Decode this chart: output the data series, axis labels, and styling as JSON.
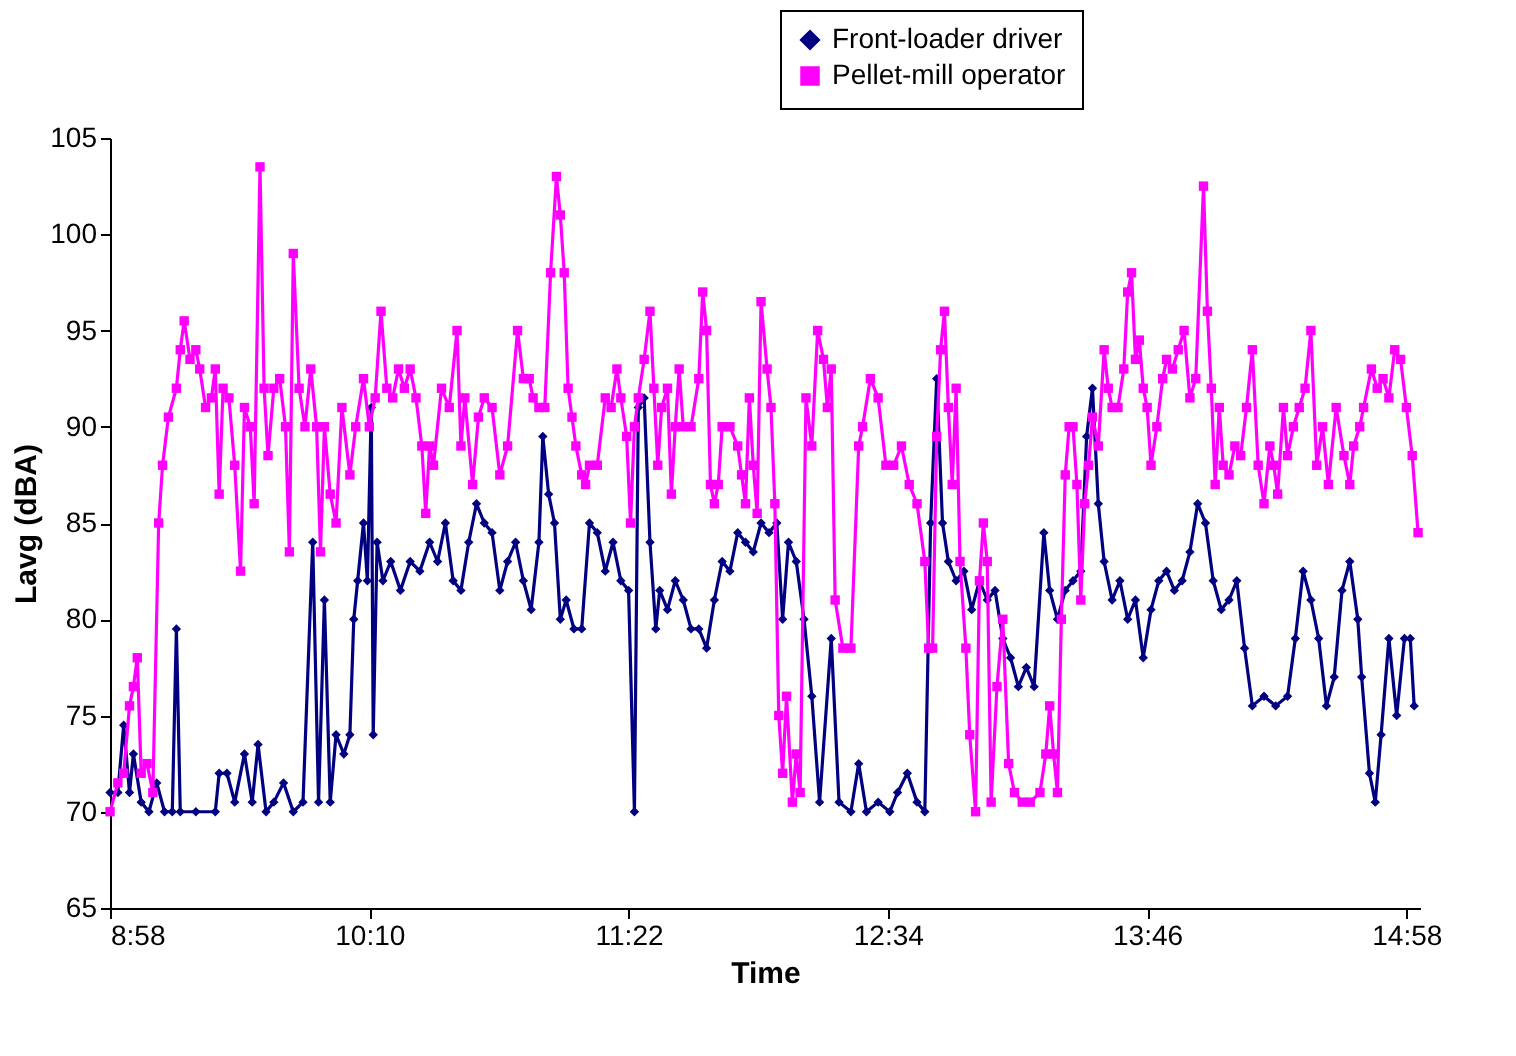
{
  "chart_data": {
    "type": "line",
    "xlabel": "Time",
    "ylabel": "Lavg (dBA)",
    "xlim": [
      8.9667,
      15.03
    ],
    "ylim": [
      65,
      105
    ],
    "xticks": [
      {
        "value": 8.9667,
        "label": "8:58"
      },
      {
        "value": 10.1667,
        "label": "10:10"
      },
      {
        "value": 11.3667,
        "label": "11:22"
      },
      {
        "value": 12.5667,
        "label": "12:34"
      },
      {
        "value": 13.7667,
        "label": "13:46"
      },
      {
        "value": 14.9667,
        "label": "14:58"
      }
    ],
    "yticks": [
      65,
      70,
      75,
      80,
      85,
      90,
      95,
      100,
      105
    ],
    "grid": false,
    "legend": "top right",
    "line_style": "solid",
    "series": [
      {
        "name": "Front-loader driver",
        "color": "#000080",
        "marker": "diamond",
        "x": [
          8.967,
          9.003,
          9.03,
          9.057,
          9.075,
          9.111,
          9.147,
          9.183,
          9.219,
          9.255,
          9.274,
          9.292,
          9.364,
          9.454,
          9.472,
          9.508,
          9.544,
          9.589,
          9.625,
          9.652,
          9.689,
          9.725,
          9.77,
          9.815,
          9.86,
          9.905,
          9.932,
          9.959,
          9.986,
          10.013,
          10.049,
          10.077,
          10.095,
          10.113,
          10.14,
          10.158,
          10.176,
          10.185,
          10.203,
          10.23,
          10.266,
          10.311,
          10.356,
          10.401,
          10.446,
          10.483,
          10.519,
          10.555,
          10.591,
          10.627,
          10.663,
          10.699,
          10.735,
          10.771,
          10.807,
          10.844,
          10.88,
          10.916,
          10.952,
          10.97,
          10.997,
          11.024,
          11.051,
          11.078,
          11.114,
          11.15,
          11.186,
          11.222,
          11.259,
          11.295,
          11.331,
          11.367,
          11.394,
          11.412,
          11.439,
          11.466,
          11.493,
          11.511,
          11.547,
          11.583,
          11.62,
          11.656,
          11.692,
          11.728,
          11.764,
          11.8,
          11.836,
          11.872,
          11.908,
          11.944,
          11.98,
          12.017,
          12.053,
          12.08,
          12.107,
          12.143,
          12.179,
          12.215,
          12.251,
          12.305,
          12.341,
          12.396,
          12.432,
          12.468,
          12.522,
          12.576,
          12.612,
          12.657,
          12.702,
          12.738,
          12.765,
          12.793,
          12.82,
          12.847,
          12.883,
          12.919,
          12.955,
          12.991,
          13.027,
          13.063,
          13.099,
          13.135,
          13.171,
          13.208,
          13.244,
          13.289,
          13.316,
          13.352,
          13.388,
          13.424,
          13.46,
          13.487,
          13.514,
          13.541,
          13.568,
          13.605,
          13.641,
          13.677,
          13.713,
          13.749,
          13.785,
          13.821,
          13.857,
          13.893,
          13.929,
          13.965,
          14.001,
          14.037,
          14.073,
          14.11,
          14.146,
          14.182,
          14.218,
          14.254,
          14.308,
          14.362,
          14.417,
          14.453,
          14.489,
          14.525,
          14.561,
          14.597,
          14.633,
          14.669,
          14.705,
          14.742,
          14.76,
          14.796,
          14.823,
          14.85,
          14.886,
          14.922,
          14.958,
          14.985,
          15.003
        ],
        "values": [
          71,
          71,
          74.5,
          71,
          73,
          70.5,
          70,
          71.5,
          70,
          70,
          79.5,
          70,
          70,
          70,
          72,
          72,
          70.5,
          73,
          70.5,
          73.5,
          70,
          70.5,
          71.5,
          70,
          70.5,
          84,
          70.5,
          81,
          70.5,
          74,
          73,
          74,
          80,
          82,
          85,
          82,
          91,
          74,
          84,
          82,
          83,
          81.5,
          83,
          82.5,
          84,
          83,
          85,
          82,
          81.5,
          84,
          86,
          85,
          84.5,
          81.5,
          83,
          84,
          82,
          80.5,
          84,
          89.5,
          86.5,
          85,
          80,
          81,
          79.5,
          79.5,
          85,
          84.5,
          82.5,
          84,
          82,
          81.5,
          70,
          91,
          91.5,
          84,
          79.5,
          81.5,
          80.5,
          82,
          81,
          79.5,
          79.5,
          78.5,
          81,
          83,
          82.5,
          84.5,
          84,
          83.5,
          85,
          84.5,
          85,
          80,
          84,
          83,
          80,
          76,
          70.5,
          79,
          70.5,
          70,
          72.5,
          70,
          70.5,
          70,
          71,
          72,
          70.5,
          70,
          85,
          92.5,
          85,
          83,
          82,
          82.5,
          80.5,
          82,
          81,
          81.5,
          79,
          78,
          76.5,
          77.5,
          76.5,
          84.5,
          81.5,
          80,
          81.5,
          82,
          82.5,
          89.5,
          92,
          86,
          83,
          81,
          82,
          80,
          81,
          78,
          80.5,
          82,
          82.5,
          81.5,
          82,
          83.5,
          86,
          85,
          82,
          80.5,
          81,
          82,
          78.5,
          75.5,
          76,
          75.5,
          76,
          79,
          82.5,
          81,
          79,
          75.5,
          77,
          81.5,
          83,
          80,
          77,
          72,
          70.5,
          74,
          79,
          75,
          79,
          79,
          75.5
        ]
      },
      {
        "name": "Pellet-mill operator",
        "color": "#ff00ff",
        "marker": "square",
        "x": [
          8.967,
          9.003,
          9.03,
          9.057,
          9.075,
          9.093,
          9.111,
          9.138,
          9.165,
          9.192,
          9.21,
          9.237,
          9.274,
          9.292,
          9.31,
          9.337,
          9.364,
          9.382,
          9.409,
          9.436,
          9.454,
          9.472,
          9.49,
          9.517,
          9.544,
          9.571,
          9.589,
          9.616,
          9.634,
          9.661,
          9.68,
          9.698,
          9.725,
          9.752,
          9.779,
          9.797,
          9.815,
          9.842,
          9.869,
          9.896,
          9.923,
          9.941,
          9.959,
          9.986,
          10.013,
          10.04,
          10.077,
          10.104,
          10.14,
          10.167,
          10.194,
          10.221,
          10.248,
          10.275,
          10.302,
          10.329,
          10.356,
          10.383,
          10.41,
          10.428,
          10.446,
          10.464,
          10.501,
          10.537,
          10.573,
          10.591,
          10.609,
          10.645,
          10.672,
          10.699,
          10.735,
          10.771,
          10.807,
          10.853,
          10.88,
          10.907,
          10.925,
          10.952,
          10.979,
          11.006,
          11.033,
          11.051,
          11.069,
          11.087,
          11.105,
          11.123,
          11.15,
          11.168,
          11.186,
          11.222,
          11.259,
          11.286,
          11.313,
          11.331,
          11.358,
          11.376,
          11.394,
          11.412,
          11.439,
          11.466,
          11.484,
          11.502,
          11.52,
          11.547,
          11.565,
          11.583,
          11.601,
          11.62,
          11.656,
          11.692,
          11.71,
          11.728,
          11.746,
          11.764,
          11.782,
          11.8,
          11.836,
          11.872,
          11.89,
          11.908,
          11.926,
          11.944,
          11.962,
          11.98,
          12.008,
          12.026,
          12.044,
          12.062,
          12.08,
          12.098,
          12.125,
          12.143,
          12.161,
          12.188,
          12.215,
          12.242,
          12.269,
          12.287,
          12.305,
          12.323,
          12.359,
          12.396,
          12.432,
          12.45,
          12.486,
          12.522,
          12.558,
          12.594,
          12.63,
          12.666,
          12.702,
          12.738,
          12.756,
          12.774,
          12.793,
          12.811,
          12.829,
          12.847,
          12.865,
          12.883,
          12.901,
          12.928,
          12.946,
          12.973,
          12.991,
          13.009,
          13.027,
          13.045,
          13.072,
          13.099,
          13.126,
          13.153,
          13.189,
          13.226,
          13.271,
          13.298,
          13.316,
          13.334,
          13.352,
          13.37,
          13.388,
          13.406,
          13.424,
          13.442,
          13.46,
          13.478,
          13.496,
          13.514,
          13.541,
          13.568,
          13.587,
          13.605,
          13.632,
          13.659,
          13.677,
          13.695,
          13.713,
          13.731,
          13.749,
          13.767,
          13.785,
          13.812,
          13.839,
          13.857,
          13.884,
          13.911,
          13.938,
          13.965,
          13.992,
          14.028,
          14.046,
          14.064,
          14.082,
          14.101,
          14.119,
          14.146,
          14.173,
          14.2,
          14.227,
          14.254,
          14.281,
          14.308,
          14.335,
          14.353,
          14.371,
          14.398,
          14.417,
          14.444,
          14.471,
          14.498,
          14.525,
          14.552,
          14.579,
          14.606,
          14.642,
          14.678,
          14.705,
          14.723,
          14.751,
          14.769,
          14.805,
          14.832,
          14.859,
          14.886,
          14.913,
          14.94,
          14.967,
          14.994,
          15.021
        ],
        "values": [
          70,
          71.5,
          72,
          75.5,
          76.5,
          78,
          72,
          72.5,
          71,
          85,
          88,
          90.5,
          92,
          94,
          95.5,
          93.5,
          94,
          93,
          91,
          91.5,
          93,
          86.5,
          92,
          91.5,
          88,
          82.5,
          91,
          90,
          86,
          103.5,
          92,
          88.5,
          92,
          92.5,
          90,
          83.5,
          99,
          92,
          90,
          93,
          90,
          83.5,
          90,
          86.5,
          85,
          91,
          87.5,
          90,
          92.5,
          90,
          91.5,
          96,
          92,
          91.5,
          93,
          92,
          93,
          91.5,
          89,
          85.5,
          89,
          88,
          92,
          91,
          95,
          89,
          91.5,
          87,
          90.5,
          91.5,
          91,
          87.5,
          89,
          95,
          92.5,
          92.5,
          91.5,
          91,
          91,
          98,
          103,
          101,
          98,
          92,
          90.5,
          89,
          87.5,
          87,
          88,
          88,
          91.5,
          91,
          93,
          91.5,
          89.5,
          85,
          90,
          91.5,
          93.5,
          96,
          92,
          88,
          91,
          92,
          86.5,
          90,
          93,
          90,
          90,
          92.5,
          97,
          95,
          87,
          86,
          87,
          90,
          90,
          89,
          87.5,
          86,
          91.5,
          88,
          85.5,
          96.5,
          93,
          91,
          86,
          75,
          72,
          76,
          70.5,
          73,
          71,
          91.5,
          89,
          95,
          93.5,
          91,
          93,
          81,
          78.5,
          78.5,
          89,
          90,
          92.5,
          91.5,
          88,
          88,
          89,
          87,
          86,
          83,
          78.5,
          78.5,
          89.5,
          94,
          96,
          91,
          87,
          92,
          83,
          78.5,
          74,
          70,
          82,
          85,
          83,
          70.5,
          76.5,
          80,
          72.5,
          71,
          70.5,
          70.5,
          71,
          73,
          75.5,
          73,
          71,
          80,
          87.5,
          90,
          90,
          87,
          81,
          86,
          88,
          90.5,
          89,
          94,
          92,
          91,
          91,
          93,
          97,
          98,
          93.5,
          94.5,
          92,
          91,
          88,
          90,
          92.5,
          93.5,
          93,
          94,
          95,
          91.5,
          92.5,
          102.5,
          96,
          92,
          87,
          91,
          88,
          87.5,
          89,
          88.5,
          91,
          94,
          88,
          86,
          89,
          88,
          86.5,
          91,
          88.5,
          90,
          91,
          92,
          95,
          88,
          90,
          87,
          91,
          88.5,
          87,
          89,
          90,
          91,
          93,
          92,
          92.5,
          91.5,
          94,
          93.5,
          91,
          88.5,
          84.5
        ]
      }
    ]
  }
}
